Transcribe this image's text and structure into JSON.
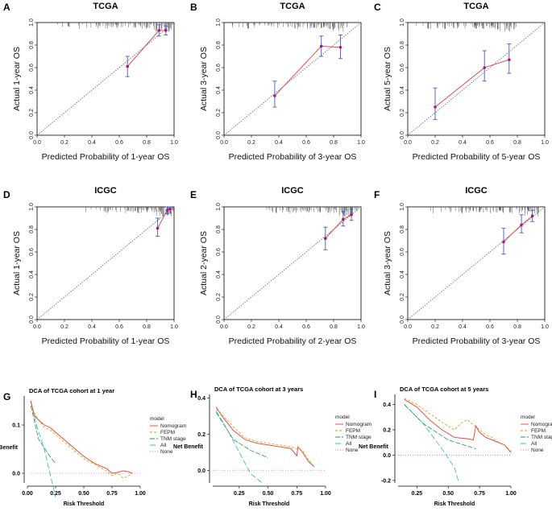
{
  "chart_data": [
    {
      "type": "scatter",
      "label": "A",
      "title": "TCGA",
      "xlabel": "Predicted Probability of 1-year OS",
      "ylabel": "Actual 1-year OS",
      "xlim": [
        0,
        1
      ],
      "ylim": [
        0,
        1
      ],
      "ticks": [
        "0.0",
        "0.2",
        "0.4",
        "0.6",
        "0.8",
        "1.0"
      ],
      "x": [
        0.66,
        0.89,
        0.94
      ],
      "y": [
        0.61,
        0.93,
        0.93
      ],
      "lower": [
        0.52,
        0.88,
        0.89
      ],
      "upper": [
        0.7,
        0.98,
        0.97
      ]
    },
    {
      "type": "scatter",
      "label": "B",
      "title": "TCGA",
      "xlabel": "Predicted Probability of 3-year OS",
      "ylabel": "Actual 3-year OS",
      "xlim": [
        0,
        1
      ],
      "ylim": [
        0,
        1
      ],
      "ticks": [
        "0.0",
        "0.2",
        "0.4",
        "0.6",
        "0.8",
        "1.0"
      ],
      "x": [
        0.37,
        0.71,
        0.85
      ],
      "y": [
        0.35,
        0.79,
        0.78
      ],
      "lower": [
        0.25,
        0.7,
        0.68
      ],
      "upper": [
        0.48,
        0.88,
        0.89
      ]
    },
    {
      "type": "scatter",
      "label": "C",
      "title": "TCGA",
      "xlabel": "Predicted Probability of 5-year OS",
      "ylabel": "Actual 5-year OS",
      "xlim": [
        0,
        1
      ],
      "ylim": [
        0,
        1
      ],
      "ticks": [
        "0.0",
        "0.2",
        "0.4",
        "0.6",
        "0.8",
        "1.0"
      ],
      "x": [
        0.2,
        0.56,
        0.74
      ],
      "y": [
        0.25,
        0.6,
        0.67
      ],
      "lower": [
        0.14,
        0.48,
        0.55
      ],
      "upper": [
        0.42,
        0.75,
        0.81
      ]
    },
    {
      "type": "scatter",
      "label": "D",
      "title": "ICGC",
      "xlabel": "Predicted Probability of 1-year OS",
      "ylabel": "Actual 1-year OS",
      "xlim": [
        0,
        1
      ],
      "ylim": [
        0,
        1
      ],
      "ticks": [
        "0.0",
        "0.2",
        "0.4",
        "0.6",
        "0.8",
        "1.0"
      ],
      "x": [
        0.88,
        0.95,
        0.97
      ],
      "y": [
        0.81,
        0.97,
        0.98
      ],
      "lower": [
        0.74,
        0.94,
        0.95
      ],
      "upper": [
        0.9,
        1.0,
        1.0
      ]
    },
    {
      "type": "scatter",
      "label": "E",
      "title": "ICGC",
      "xlabel": "Predicted Probability of 2-year OS",
      "ylabel": "Actual 2-year OS",
      "xlim": [
        0,
        1
      ],
      "ylim": [
        0,
        1
      ],
      "ticks": [
        "0.0",
        "0.2",
        "0.4",
        "0.6",
        "0.8",
        "1.0"
      ],
      "x": [
        0.74,
        0.87,
        0.93
      ],
      "y": [
        0.72,
        0.89,
        0.93
      ],
      "lower": [
        0.62,
        0.83,
        0.88
      ],
      "upper": [
        0.82,
        0.96,
        0.98
      ]
    },
    {
      "type": "scatter",
      "label": "F",
      "title": "ICGC",
      "xlabel": "Predicted Probability of 3-year OS",
      "ylabel": "Actual 3-year OS",
      "xlim": [
        0,
        1
      ],
      "ylim": [
        0,
        1
      ],
      "ticks": [
        "0.0",
        "0.2",
        "0.4",
        "0.6",
        "0.8",
        "1.0"
      ],
      "x": [
        0.7,
        0.83,
        0.91
      ],
      "y": [
        0.69,
        0.84,
        0.92
      ],
      "lower": [
        0.58,
        0.77,
        0.87
      ],
      "upper": [
        0.81,
        0.93,
        0.97
      ]
    },
    {
      "type": "line",
      "label": "G",
      "title": "DCA of TCGA cohort at 1 year",
      "xlabel": "Risk Threshold",
      "ylabel": "Net Benefit",
      "xlim": [
        0,
        1
      ],
      "ylim": [
        -0.02,
        0.16
      ],
      "xticks": [
        "0.00",
        "0.25",
        "0.50",
        "0.75",
        "1.00"
      ],
      "xtick_values": [
        0,
        0.25,
        0.5,
        0.75,
        1
      ],
      "yticks": [
        "0.0",
        "0.1"
      ],
      "ytick_values": [
        0,
        0.1
      ],
      "legend_title": "model",
      "series": [
        {
          "name": "Nomogram",
          "color": "#e8412c",
          "dash": "",
          "x": [
            0.03,
            0.06,
            0.1,
            0.15,
            0.2,
            0.3,
            0.4,
            0.5,
            0.6,
            0.7,
            0.75,
            0.8,
            0.85,
            0.9,
            0.93
          ],
          "y": [
            0.15,
            0.12,
            0.11,
            0.1,
            0.095,
            0.075,
            0.055,
            0.035,
            0.02,
            0.01,
            0.0,
            0.002,
            0.005,
            0.003,
            0.0
          ]
        },
        {
          "name": "FEPM",
          "color": "#c9a800",
          "dash": "3,2",
          "x": [
            0.03,
            0.06,
            0.1,
            0.15,
            0.2,
            0.3,
            0.4,
            0.5,
            0.6,
            0.7,
            0.75,
            0.8,
            0.85,
            0.9,
            0.93
          ],
          "y": [
            0.15,
            0.125,
            0.11,
            0.095,
            0.09,
            0.07,
            0.05,
            0.03,
            0.018,
            0.005,
            -0.005,
            0.0,
            -0.01,
            -0.005,
            0.0
          ]
        },
        {
          "name": "TNM stage",
          "color": "#1a9a52",
          "dash": "6,2",
          "x": [
            0.03,
            0.1,
            0.2,
            0.25
          ],
          "y": [
            0.14,
            0.07,
            0.035,
            0.02
          ]
        },
        {
          "name": "All",
          "color": "#22b6d6",
          "dash": "7,3",
          "x": [
            0.03,
            0.08,
            0.15,
            0.2,
            0.25
          ],
          "y": [
            0.15,
            0.1,
            0.05,
            0.0,
            -0.05
          ]
        },
        {
          "name": "None",
          "color": "#e86bd1",
          "dash": "1,2",
          "x": [
            0.03,
            1.0
          ],
          "y": [
            0,
            0
          ]
        }
      ]
    },
    {
      "type": "line",
      "label": "H",
      "title": "DCA of TCGA cohort at 3 years",
      "xlabel": "Risk Threshold",
      "ylabel": "Net Benefit",
      "xlim": [
        0.02,
        1
      ],
      "ylim": [
        -0.07,
        0.42
      ],
      "xticks": [
        "0.25",
        "0.50",
        "0.75",
        "1.00"
      ],
      "xtick_values": [
        0.25,
        0.5,
        0.75,
        1
      ],
      "yticks": [
        "0.0",
        "0.2",
        "0.4"
      ],
      "ytick_values": [
        0,
        0.2,
        0.4
      ],
      "legend_title": "model",
      "series": [
        {
          "name": "Nomogram",
          "color": "#e8412c",
          "dash": "",
          "x": [
            0.05,
            0.1,
            0.2,
            0.3,
            0.4,
            0.5,
            0.6,
            0.7,
            0.75,
            0.76,
            0.8,
            0.85,
            0.9
          ],
          "y": [
            0.35,
            0.3,
            0.22,
            0.17,
            0.15,
            0.14,
            0.13,
            0.12,
            0.08,
            0.13,
            0.1,
            0.05,
            0.02
          ]
        },
        {
          "name": "FEPM",
          "color": "#c9a800",
          "dash": "3,2",
          "x": [
            0.05,
            0.1,
            0.2,
            0.3,
            0.4,
            0.5,
            0.6,
            0.7,
            0.8,
            0.85,
            0.9
          ],
          "y": [
            0.34,
            0.31,
            0.24,
            0.18,
            0.16,
            0.15,
            0.14,
            0.13,
            0.11,
            0.06,
            0.02
          ]
        },
        {
          "name": "TNM stage",
          "color": "#1a9a52",
          "dash": "6,2",
          "x": [
            0.05,
            0.2,
            0.35,
            0.5
          ],
          "y": [
            0.32,
            0.17,
            0.11,
            0.07
          ]
        },
        {
          "name": "All",
          "color": "#22b6d6",
          "dash": "7,3",
          "x": [
            0.05,
            0.15,
            0.25,
            0.35,
            0.45
          ],
          "y": [
            0.33,
            0.22,
            0.1,
            -0.02,
            -0.07
          ]
        },
        {
          "name": "None",
          "color": "#e86bd1",
          "dash": "1,2",
          "x": [
            0.02,
            1.0
          ],
          "y": [
            0,
            0
          ]
        }
      ]
    },
    {
      "type": "line",
      "label": "I",
      "title": "DCA of TCGA cohort at 5 years",
      "xlabel": "Risk Threshold",
      "ylabel": "Net Benefit",
      "xlim": [
        0.1,
        1
      ],
      "ylim": [
        -0.22,
        0.48
      ],
      "xticks": [
        "0.25",
        "0.50",
        "0.75",
        "1.00"
      ],
      "xtick_values": [
        0.25,
        0.5,
        0.75,
        1
      ],
      "yticks": [
        "-0.2",
        "0.0",
        "0.2",
        "0.4"
      ],
      "ytick_values": [
        -0.2,
        0,
        0.2,
        0.4
      ],
      "legend_title": "model",
      "series": [
        {
          "name": "Nomogram",
          "color": "#e8412c",
          "dash": "",
          "x": [
            0.15,
            0.25,
            0.35,
            0.45,
            0.55,
            0.65,
            0.7,
            0.72,
            0.75,
            0.8,
            0.85,
            0.9,
            0.95,
            1.0
          ],
          "y": [
            0.44,
            0.38,
            0.28,
            0.2,
            0.14,
            0.13,
            0.12,
            0.23,
            0.18,
            0.14,
            0.12,
            0.1,
            0.08,
            0.02
          ]
        },
        {
          "name": "FEPM",
          "color": "#c9a800",
          "dash": "3,2",
          "x": [
            0.15,
            0.25,
            0.35,
            0.45,
            0.55,
            0.6,
            0.65,
            0.75,
            0.8,
            0.85,
            0.9,
            0.95,
            1.0
          ],
          "y": [
            0.45,
            0.4,
            0.33,
            0.26,
            0.2,
            0.25,
            0.28,
            0.2,
            0.16,
            0.14,
            0.1,
            0.08,
            0.03
          ]
        },
        {
          "name": "TNM stage",
          "color": "#1a9a52",
          "dash": "6,2",
          "x": [
            0.15,
            0.3,
            0.5,
            0.72
          ],
          "y": [
            0.4,
            0.25,
            0.12,
            0.05
          ]
        },
        {
          "name": "All",
          "color": "#22b6d6",
          "dash": "7,3",
          "x": [
            0.15,
            0.3,
            0.45,
            0.55,
            0.58
          ],
          "y": [
            0.4,
            0.25,
            0.05,
            -0.1,
            -0.2
          ]
        },
        {
          "name": "None",
          "color": "#e86bd1",
          "dash": "1,2",
          "x": [
            0.1,
            1.0
          ],
          "y": [
            0,
            0
          ]
        }
      ]
    }
  ]
}
